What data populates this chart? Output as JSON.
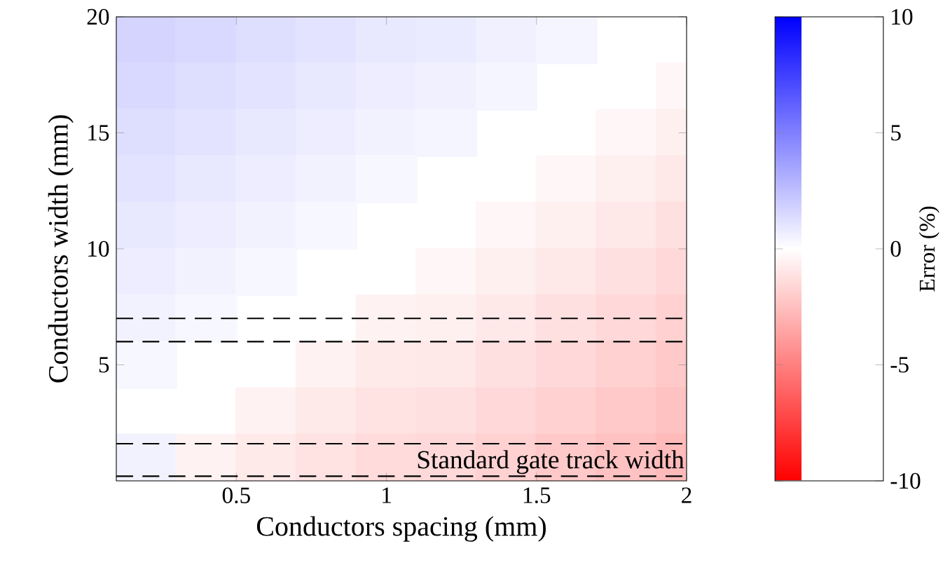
{
  "chart_data": {
    "type": "scatter",
    "marker": "square",
    "xlabel": "Conductors spacing (mm)",
    "ylabel": "Conductors width (mm)",
    "clabel": "Error (%)",
    "xlim": [
      0.1,
      2
    ],
    "xticks": [
      0.5,
      1,
      1.5,
      2
    ],
    "ylim": [
      0,
      20
    ],
    "yticks": [
      5,
      10,
      15,
      20
    ],
    "x": [
      0.2,
      0.4,
      0.6,
      0.8,
      1.0,
      1.2,
      1.4,
      1.6,
      0.2,
      0.4,
      0.6,
      0.8,
      1.0,
      1.2,
      1.4,
      2.0,
      0.2,
      0.4,
      0.6,
      0.8,
      1.0,
      1.2,
      1.8,
      2.0,
      0.2,
      0.4,
      0.6,
      0.8,
      1.0,
      1.6,
      1.8,
      2.0,
      0.2,
      0.4,
      0.6,
      0.8,
      1.4,
      1.6,
      1.8,
      2.0,
      0.2,
      0.4,
      0.6,
      1.2,
      1.4,
      1.6,
      1.8,
      2.0,
      0.2,
      0.4,
      1.0,
      1.2,
      1.4,
      1.6,
      1.8,
      2.0,
      0.2,
      0.8,
      1.0,
      1.2,
      1.4,
      1.6,
      1.8,
      2.0,
      0.6,
      0.8,
      1.0,
      1.2,
      1.4,
      1.6,
      1.8,
      2.0,
      0.2,
      0.4,
      0.6,
      0.8,
      1.0,
      1.2,
      1.4,
      1.6,
      1.8,
      2.0
    ],
    "values": [
      19,
      19,
      19,
      19,
      19,
      19,
      19,
      19,
      17,
      17,
      17,
      17,
      17,
      17,
      17,
      17,
      15,
      15,
      15,
      15,
      15,
      15,
      15,
      15,
      13,
      13,
      13,
      13,
      13,
      13,
      13,
      13,
      11,
      11,
      11,
      11,
      11,
      11,
      11,
      11,
      9,
      9,
      9,
      9,
      9,
      9,
      9,
      9,
      7,
      7,
      7,
      7,
      7,
      7,
      7,
      7,
      5,
      5,
      5,
      5,
      5,
      5,
      5,
      5,
      3,
      3,
      3,
      3,
      3,
      3,
      3,
      3,
      1,
      1,
      1,
      1,
      1,
      1,
      1,
      1,
      1,
      1
    ],
    "cvalues": [
      1.7,
      1.5,
      1.3,
      1.1,
      0.9,
      0.8,
      0.6,
      0.4,
      1.5,
      1.3,
      1.1,
      0.9,
      0.7,
      0.6,
      0.4,
      -0.3,
      1.3,
      1.1,
      0.9,
      0.7,
      0.5,
      0.4,
      -0.3,
      -0.6,
      1.1,
      0.9,
      0.7,
      0.5,
      0.3,
      -0.3,
      -0.6,
      -0.9,
      0.9,
      0.7,
      0.5,
      0.3,
      -0.3,
      -0.6,
      -0.9,
      -1.2,
      0.7,
      0.5,
      0.3,
      -0.3,
      -0.6,
      -0.9,
      -1.2,
      -1.5,
      0.5,
      0.3,
      -0.5,
      -0.6,
      -0.9,
      -1.2,
      -1.5,
      -1.8,
      0.3,
      -0.5,
      -0.8,
      -0.9,
      -1.2,
      -1.5,
      -1.8,
      -2.1,
      -0.5,
      -0.8,
      -1.1,
      -1.2,
      -1.5,
      -1.8,
      -2.1,
      -2.4,
      0.5,
      -0.5,
      -0.8,
      -1.1,
      -1.4,
      -1.5,
      -1.8,
      -2.1,
      -2.4,
      -2.7
    ],
    "clim": [
      -10,
      10
    ],
    "cticks": [
      -10,
      -5,
      0,
      5,
      10
    ],
    "ref_lines": [
      {
        "axis": "y",
        "value": 7,
        "color": "#000000",
        "line_style": "dashed"
      },
      {
        "axis": "y",
        "value": 6,
        "color": "#000000",
        "line_style": "dashed"
      },
      {
        "axis": "y",
        "value": 1.6,
        "color": "#000000",
        "line_style": "dashed"
      },
      {
        "axis": "y",
        "value": 0.2,
        "label": "Standard gate track width",
        "color": "#000000",
        "line_style": "dashed"
      }
    ]
  }
}
